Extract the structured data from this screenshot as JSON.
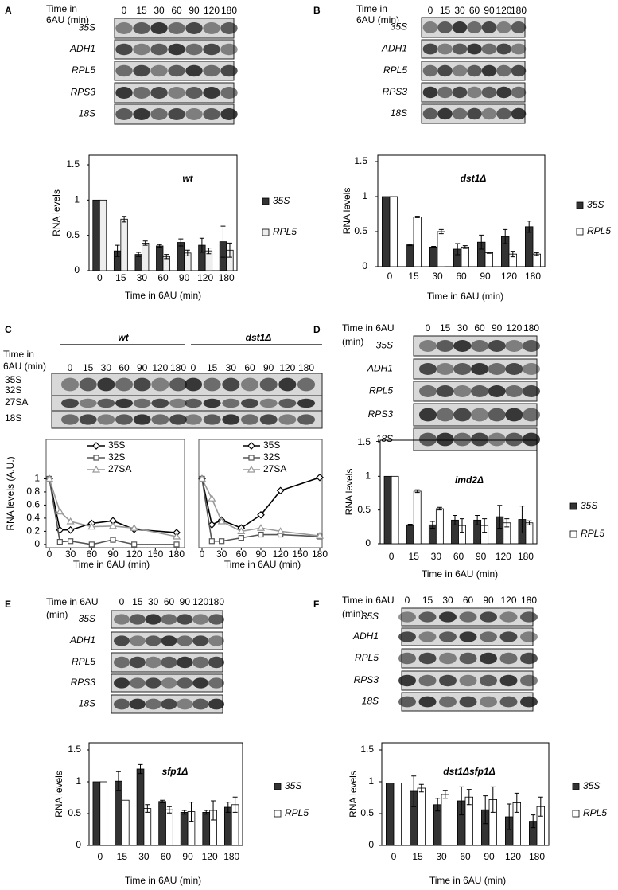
{
  "blots": [
    {
      "letter": "A",
      "time_label": [
        "Time in",
        "6AU (min)"
      ],
      "lanes": [
        "0",
        "15",
        "30",
        "60",
        "90",
        "120",
        "180"
      ],
      "rows": [
        "35S",
        "ADH1",
        "RPL5",
        "RPS3",
        "18S"
      ]
    },
    {
      "letter": "B",
      "time_label": [
        "Time in",
        "6AU (min)"
      ],
      "lanes": [
        "0",
        "15",
        "30",
        "60",
        "90",
        "120",
        "180"
      ],
      "rows": [
        "35S",
        "ADH1",
        "RPL5",
        "RPS3",
        "18S"
      ]
    },
    {
      "letter": "C",
      "time_label": [
        "Time in",
        "6AU (min)"
      ],
      "groups": [
        {
          "name": "wt",
          "lanes": [
            "0",
            "15",
            "30",
            "60",
            "90",
            "120",
            "180"
          ]
        },
        {
          "name": "dst1Δ",
          "lanes": [
            "0",
            "15",
            "30",
            "60",
            "90",
            "120",
            "180"
          ]
        }
      ],
      "rows": [
        "35S",
        "32S",
        "27SA",
        "18S"
      ]
    },
    {
      "letter": "D",
      "time_label": [
        "Time in 6AU",
        "(min)"
      ],
      "lanes": [
        "0",
        "15",
        "30",
        "60",
        "90",
        "120",
        "180"
      ],
      "rows": [
        "35S",
        "ADH1",
        "RPL5",
        "RPS3",
        "18S"
      ]
    },
    {
      "letter": "E",
      "time_label": [
        "Time in 6AU",
        "(min)"
      ],
      "lanes": [
        "0",
        "15",
        "30",
        "60",
        "90",
        "120",
        "180"
      ],
      "rows": [
        "35S",
        "ADH1",
        "RPL5",
        "RPS3",
        "18S"
      ]
    },
    {
      "letter": "F",
      "time_label": [
        "Time in 6AU",
        "(min)"
      ],
      "lanes": [
        "0",
        "15",
        "30",
        "60",
        "90",
        "120",
        "180"
      ],
      "rows": [
        "35S",
        "ADH1",
        "RPL5",
        "RPS3",
        "18S"
      ]
    }
  ],
  "chart_data": [
    {
      "type": "bar",
      "title": "wt",
      "xlabel": "Time in 6AU (min)",
      "ylabel": "RNA levels",
      "categories": [
        "0",
        "15",
        "30",
        "60",
        "90",
        "120",
        "180"
      ],
      "series": [
        {
          "name": "35S",
          "color": "#333333",
          "values": [
            1,
            0.28,
            0.23,
            0.35,
            0.4,
            0.36,
            0.41
          ],
          "errors": [
            null,
            0.08,
            0.03,
            0.02,
            0.05,
            0.1,
            0.22
          ]
        },
        {
          "name": "RPL5",
          "color": "#eeeeee",
          "values": [
            1,
            0.73,
            0.39,
            0.2,
            0.25,
            0.28,
            0.29
          ],
          "errors": [
            null,
            0.04,
            0.03,
            0.03,
            0.04,
            0.04,
            0.1
          ]
        }
      ],
      "ylim": [
        0,
        1.5
      ],
      "yticks": [
        0,
        0.5,
        1,
        1.5
      ],
      "legend": "right"
    },
    {
      "type": "bar",
      "title": "dst1Δ",
      "xlabel": "Time in 6AU (min)",
      "ylabel": "RNA levels",
      "categories": [
        "0",
        "15",
        "30",
        "60",
        "90",
        "120",
        "180"
      ],
      "series": [
        {
          "name": "35S",
          "color": "#333333",
          "values": [
            1,
            0.31,
            0.28,
            0.25,
            0.35,
            0.43,
            0.57
          ],
          "errors": [
            null,
            0.01,
            0.01,
            0.08,
            0.1,
            0.1,
            0.08
          ]
        },
        {
          "name": "RPL5",
          "color": "#ffffff",
          "values": [
            1,
            0.71,
            0.5,
            0.28,
            0.2,
            0.18,
            0.18
          ],
          "errors": [
            null,
            0.01,
            0.03,
            0.02,
            0.01,
            0.04,
            0.02
          ]
        }
      ],
      "ylim": [
        0,
        1.5
      ],
      "yticks": [
        0,
        0.5,
        1,
        1.5
      ],
      "legend": "right"
    },
    {
      "type": "line",
      "xlabel": "Time in 6AU (min)",
      "ylabel": "RNA levels (A.U.)",
      "x": [
        0,
        15,
        30,
        60,
        90,
        120,
        180
      ],
      "series": [
        {
          "name": "35S",
          "color": "#000000",
          "marker": "diamond",
          "values": [
            1,
            0.22,
            0.22,
            0.32,
            0.36,
            0.23,
            0.18
          ]
        },
        {
          "name": "32S",
          "color": "#555555",
          "marker": "square",
          "values": [
            1,
            0.04,
            0.05,
            0,
            0.07,
            0,
            0
          ]
        },
        {
          "name": "27SA",
          "color": "#999999",
          "marker": "triangle",
          "values": [
            1,
            0.5,
            0.35,
            0.27,
            0.28,
            0.25,
            0.12
          ]
        }
      ],
      "xlim": [
        0,
        180
      ],
      "xticks": [
        0,
        30,
        60,
        90,
        120,
        150,
        180
      ],
      "ylim": [
        -0.05,
        1.6
      ],
      "yticks": [
        0,
        0.2,
        0.4,
        0.6,
        0.8,
        1
      ],
      "legend": "top-center"
    },
    {
      "type": "line",
      "xlabel": "Time in 6AU (min)",
      "x": [
        0,
        15,
        30,
        60,
        90,
        120,
        180
      ],
      "series": [
        {
          "name": "35S",
          "color": "#000000",
          "marker": "diamond",
          "values": [
            1,
            0.3,
            0.37,
            0.25,
            0.45,
            0.82,
            1.02
          ]
        },
        {
          "name": "32S",
          "color": "#555555",
          "marker": "square",
          "values": [
            1,
            0.05,
            0.05,
            0.1,
            0.15,
            0.15,
            0.12
          ]
        },
        {
          "name": "27SA",
          "color": "#999999",
          "marker": "triangle",
          "values": [
            1,
            0.7,
            0.35,
            0.2,
            0.25,
            0.2,
            0.13
          ]
        }
      ],
      "xlim": [
        0,
        180
      ],
      "xticks": [
        0,
        30,
        60,
        90,
        120,
        150,
        180
      ],
      "ylim": [
        -0.05,
        1.6
      ],
      "legend": "top-center"
    },
    {
      "type": "bar",
      "title": "imd2Δ",
      "xlabel": "Time in 6AU (min)",
      "ylabel": "RNA levels",
      "categories": [
        "0",
        "15",
        "30",
        "60",
        "90",
        "120",
        "180"
      ],
      "series": [
        {
          "name": "35S",
          "color": "#333333",
          "values": [
            1,
            0.28,
            0.28,
            0.35,
            0.35,
            0.4,
            0.36
          ],
          "errors": [
            null,
            0.01,
            0.05,
            0.07,
            0.07,
            0.17,
            0.2
          ]
        },
        {
          "name": "RPL5",
          "color": "#ffffff",
          "values": [
            1,
            0.78,
            0.52,
            0.27,
            0.27,
            0.31,
            0.31
          ],
          "errors": [
            null,
            0.02,
            0.02,
            0.1,
            0.1,
            0.06,
            0.03
          ]
        }
      ],
      "ylim": [
        0,
        1.5
      ],
      "yticks": [
        0,
        0.5,
        1,
        1.5
      ],
      "legend": "right"
    },
    {
      "type": "bar",
      "title": "sfp1Δ",
      "xlabel": "Time in 6AU (min)",
      "ylabel": "RNA levels",
      "categories": [
        "0",
        "15",
        "30",
        "60",
        "90",
        "120",
        "180"
      ],
      "series": [
        {
          "name": "35S",
          "color": "#333333",
          "values": [
            1,
            1.01,
            1.2,
            0.69,
            0.52,
            0.52,
            0.6
          ],
          "errors": [
            null,
            0.15,
            0.07,
            0.02,
            0.03,
            0.03,
            0.08
          ]
        },
        {
          "name": "RPL5",
          "color": "#ffffff",
          "values": [
            1,
            0.71,
            0.58,
            0.56,
            0.53,
            0.55,
            0.64
          ],
          "errors": [
            null,
            null,
            0.06,
            0.05,
            0.15,
            0.15,
            0.12
          ]
        }
      ],
      "ylim": [
        0,
        1.5
      ],
      "yticks": [
        0,
        0.5,
        1,
        1.5
      ],
      "legend": "right"
    },
    {
      "type": "bar",
      "title": "dst1Δsfp1Δ",
      "xlabel": "Time in 6AU (min)",
      "ylabel": "RNA levels",
      "categories": [
        "0",
        "15",
        "30",
        "60",
        "90",
        "120",
        "180"
      ],
      "series": [
        {
          "name": "35S",
          "color": "#333333",
          "values": [
            0.98,
            0.85,
            0.64,
            0.7,
            0.56,
            0.45,
            0.38
          ],
          "errors": [
            null,
            0.24,
            0.1,
            0.22,
            0.22,
            0.2,
            0.1
          ]
        },
        {
          "name": "RPL5",
          "color": "#ffffff",
          "values": [
            0.98,
            0.9,
            0.8,
            0.76,
            0.72,
            0.67,
            0.61
          ],
          "errors": [
            null,
            0.06,
            0.06,
            0.12,
            0.2,
            0.15,
            0.15
          ]
        }
      ],
      "ylim": [
        0,
        1.5
      ],
      "yticks": [
        0,
        0.5,
        1,
        1.5
      ],
      "legend": "right"
    }
  ]
}
